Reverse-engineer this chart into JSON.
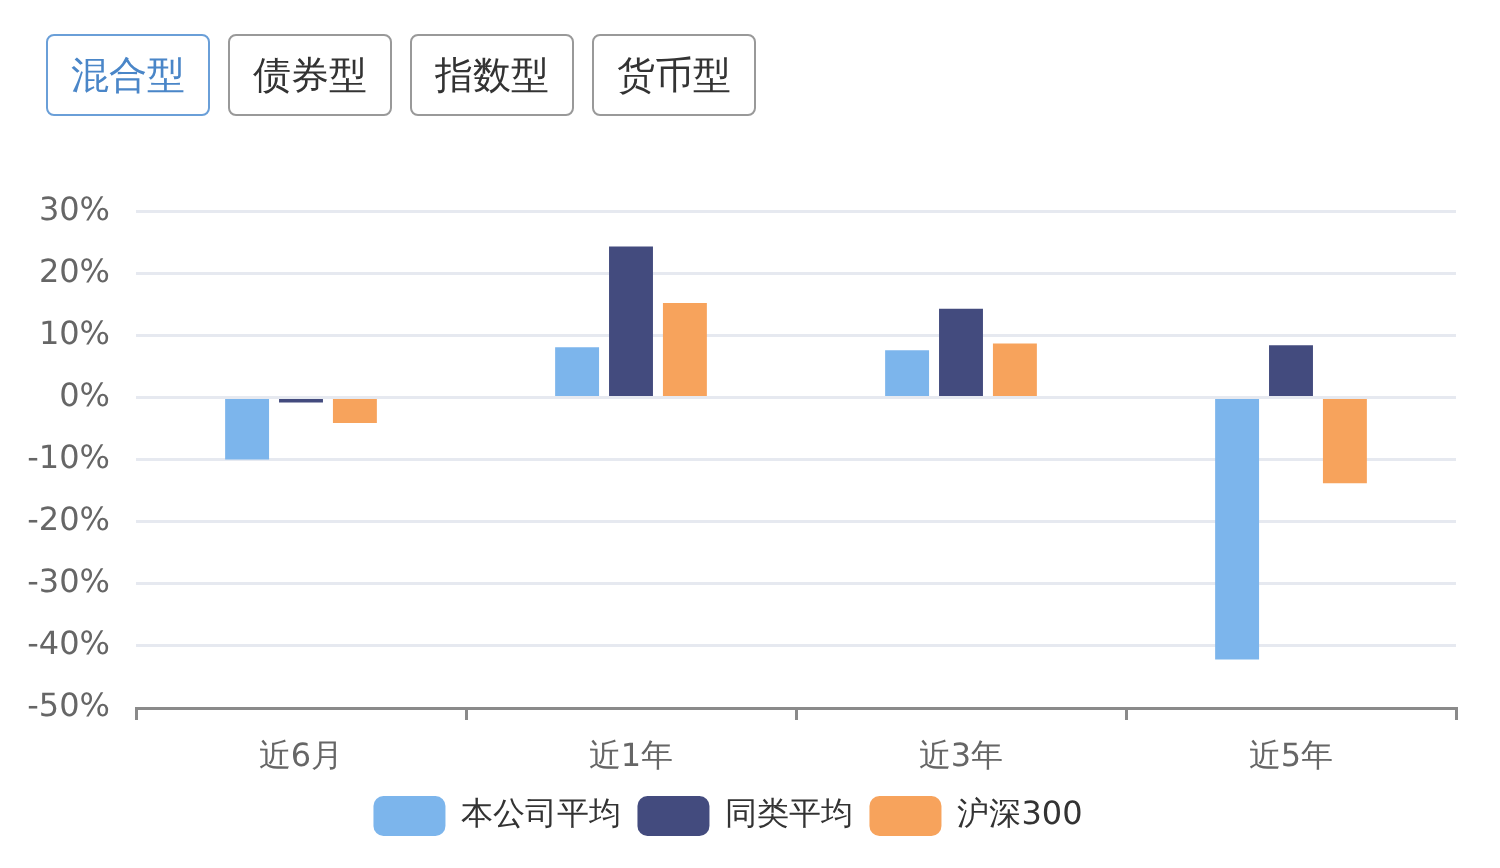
{
  "chart_data": {
    "type": "bar",
    "annotations": [
      "混合型",
      "债券型",
      "指数型",
      "货币型"
    ],
    "categories": [
      "近6月",
      "近1年",
      "近3年",
      "近5年"
    ],
    "series": [
      {
        "name": "本公司平均",
        "color": "#7cb5ec",
        "values": [
          -10.0,
          8.1,
          7.6,
          -42.2
        ]
      },
      {
        "name": "同类平均",
        "color": "#434b7e",
        "values": [
          -0.8,
          24.3,
          14.3,
          8.4
        ]
      },
      {
        "name": "沪深300",
        "color": "#f7a35c",
        "values": [
          -4.1,
          15.2,
          8.7,
          -13.8
        ]
      }
    ],
    "ylim": [
      -50,
      30
    ],
    "yticks": [
      {
        "value": -50,
        "label": "-50%"
      },
      {
        "value": -40,
        "label": "-40%"
      },
      {
        "value": -30,
        "label": "-30%"
      },
      {
        "value": -20,
        "label": "-20%"
      },
      {
        "value": -10,
        "label": "-10%"
      },
      {
        "value": 0,
        "label": "0%"
      },
      {
        "value": 10,
        "label": "10%"
      },
      {
        "value": 20,
        "label": "20%"
      },
      {
        "value": 30,
        "label": "30%"
      }
    ],
    "grid": "y",
    "legend": "bottom"
  }
}
